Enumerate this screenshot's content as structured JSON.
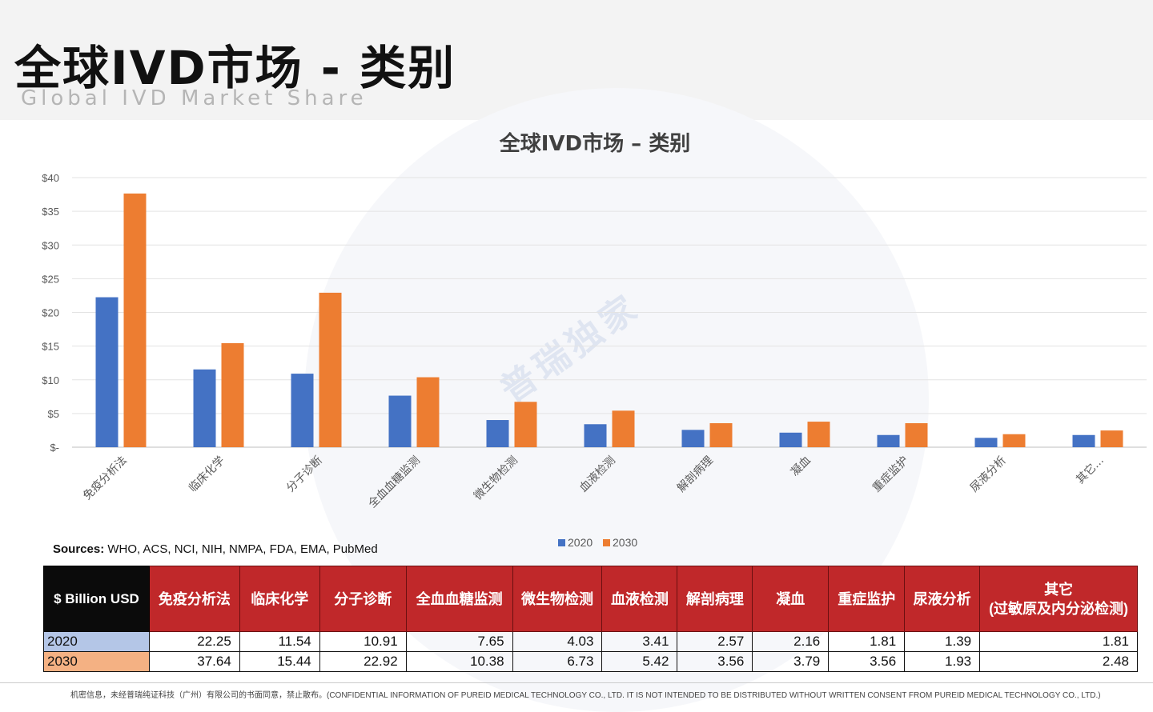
{
  "header": {
    "title": "全球IVD市场 - 类别",
    "subtitle": "Global IVD Market Share"
  },
  "watermark": "普瑞独家",
  "sources": {
    "label": "Sources:",
    "text": "WHO, ACS, NCI, NIH, NMPA, FDA, EMA, PubMed"
  },
  "chart_data": {
    "type": "bar",
    "title": "全球IVD市场 – 类别",
    "categories": [
      "免疫分析法",
      "临床化学",
      "分子诊断",
      "全血血糖监测",
      "微生物检测",
      "血液检测",
      "解剖病理",
      "凝血",
      "重症监护",
      "尿液分析",
      "其它..."
    ],
    "series": [
      {
        "name": "2020",
        "color": "#4472c4",
        "values": [
          22.25,
          11.54,
          10.91,
          7.65,
          4.03,
          3.41,
          2.57,
          2.16,
          1.81,
          1.39,
          1.81
        ]
      },
      {
        "name": "2030",
        "color": "#ed7d31",
        "values": [
          37.64,
          15.44,
          22.92,
          10.38,
          6.73,
          5.42,
          3.56,
          3.79,
          3.56,
          1.93,
          2.48
        ]
      }
    ],
    "ylim": [
      0,
      40
    ],
    "yticks": [
      0,
      5,
      10,
      15,
      20,
      25,
      30,
      35,
      40
    ],
    "ytick_labels": [
      "$-",
      "$5",
      "$10",
      "$15",
      "$20",
      "$25",
      "$30",
      "$35",
      "$40"
    ],
    "grid": true,
    "legend_position": "bottom"
  },
  "table": {
    "corner": "$ Billion USD",
    "headers": [
      "免疫分析法",
      "临床化学",
      "分子诊断",
      "全血血糖监测",
      "微生物检测",
      "血液检测",
      "解剖病理",
      "凝血",
      "重症监护",
      "尿液分析"
    ],
    "last_header_line1": "其它",
    "last_header_line2": "(过敏原及内分泌检测)",
    "rows": [
      {
        "label": "2020",
        "values": [
          "22.25",
          "11.54",
          "10.91",
          "7.65",
          "4.03",
          "3.41",
          "2.57",
          "2.16",
          "1.81",
          "1.39",
          "1.81"
        ]
      },
      {
        "label": "2030",
        "values": [
          "37.64",
          "15.44",
          "22.92",
          "10.38",
          "6.73",
          "5.42",
          "3.56",
          "3.79",
          "3.56",
          "1.93",
          "2.48"
        ]
      }
    ]
  },
  "footer": "机密信息，未经普瑞纯证科技（广州）有限公司的书面同意，禁止散布。(CONFIDENTIAL INFORMATION OF PUREID MEDICAL TECHNOLOGY CO., LTD. IT IS NOT INTENDED TO BE DISTRIBUTED WITHOUT WRITTEN CONSENT FROM PUREID MEDICAL TECHNOLOGY CO., LTD.)"
}
